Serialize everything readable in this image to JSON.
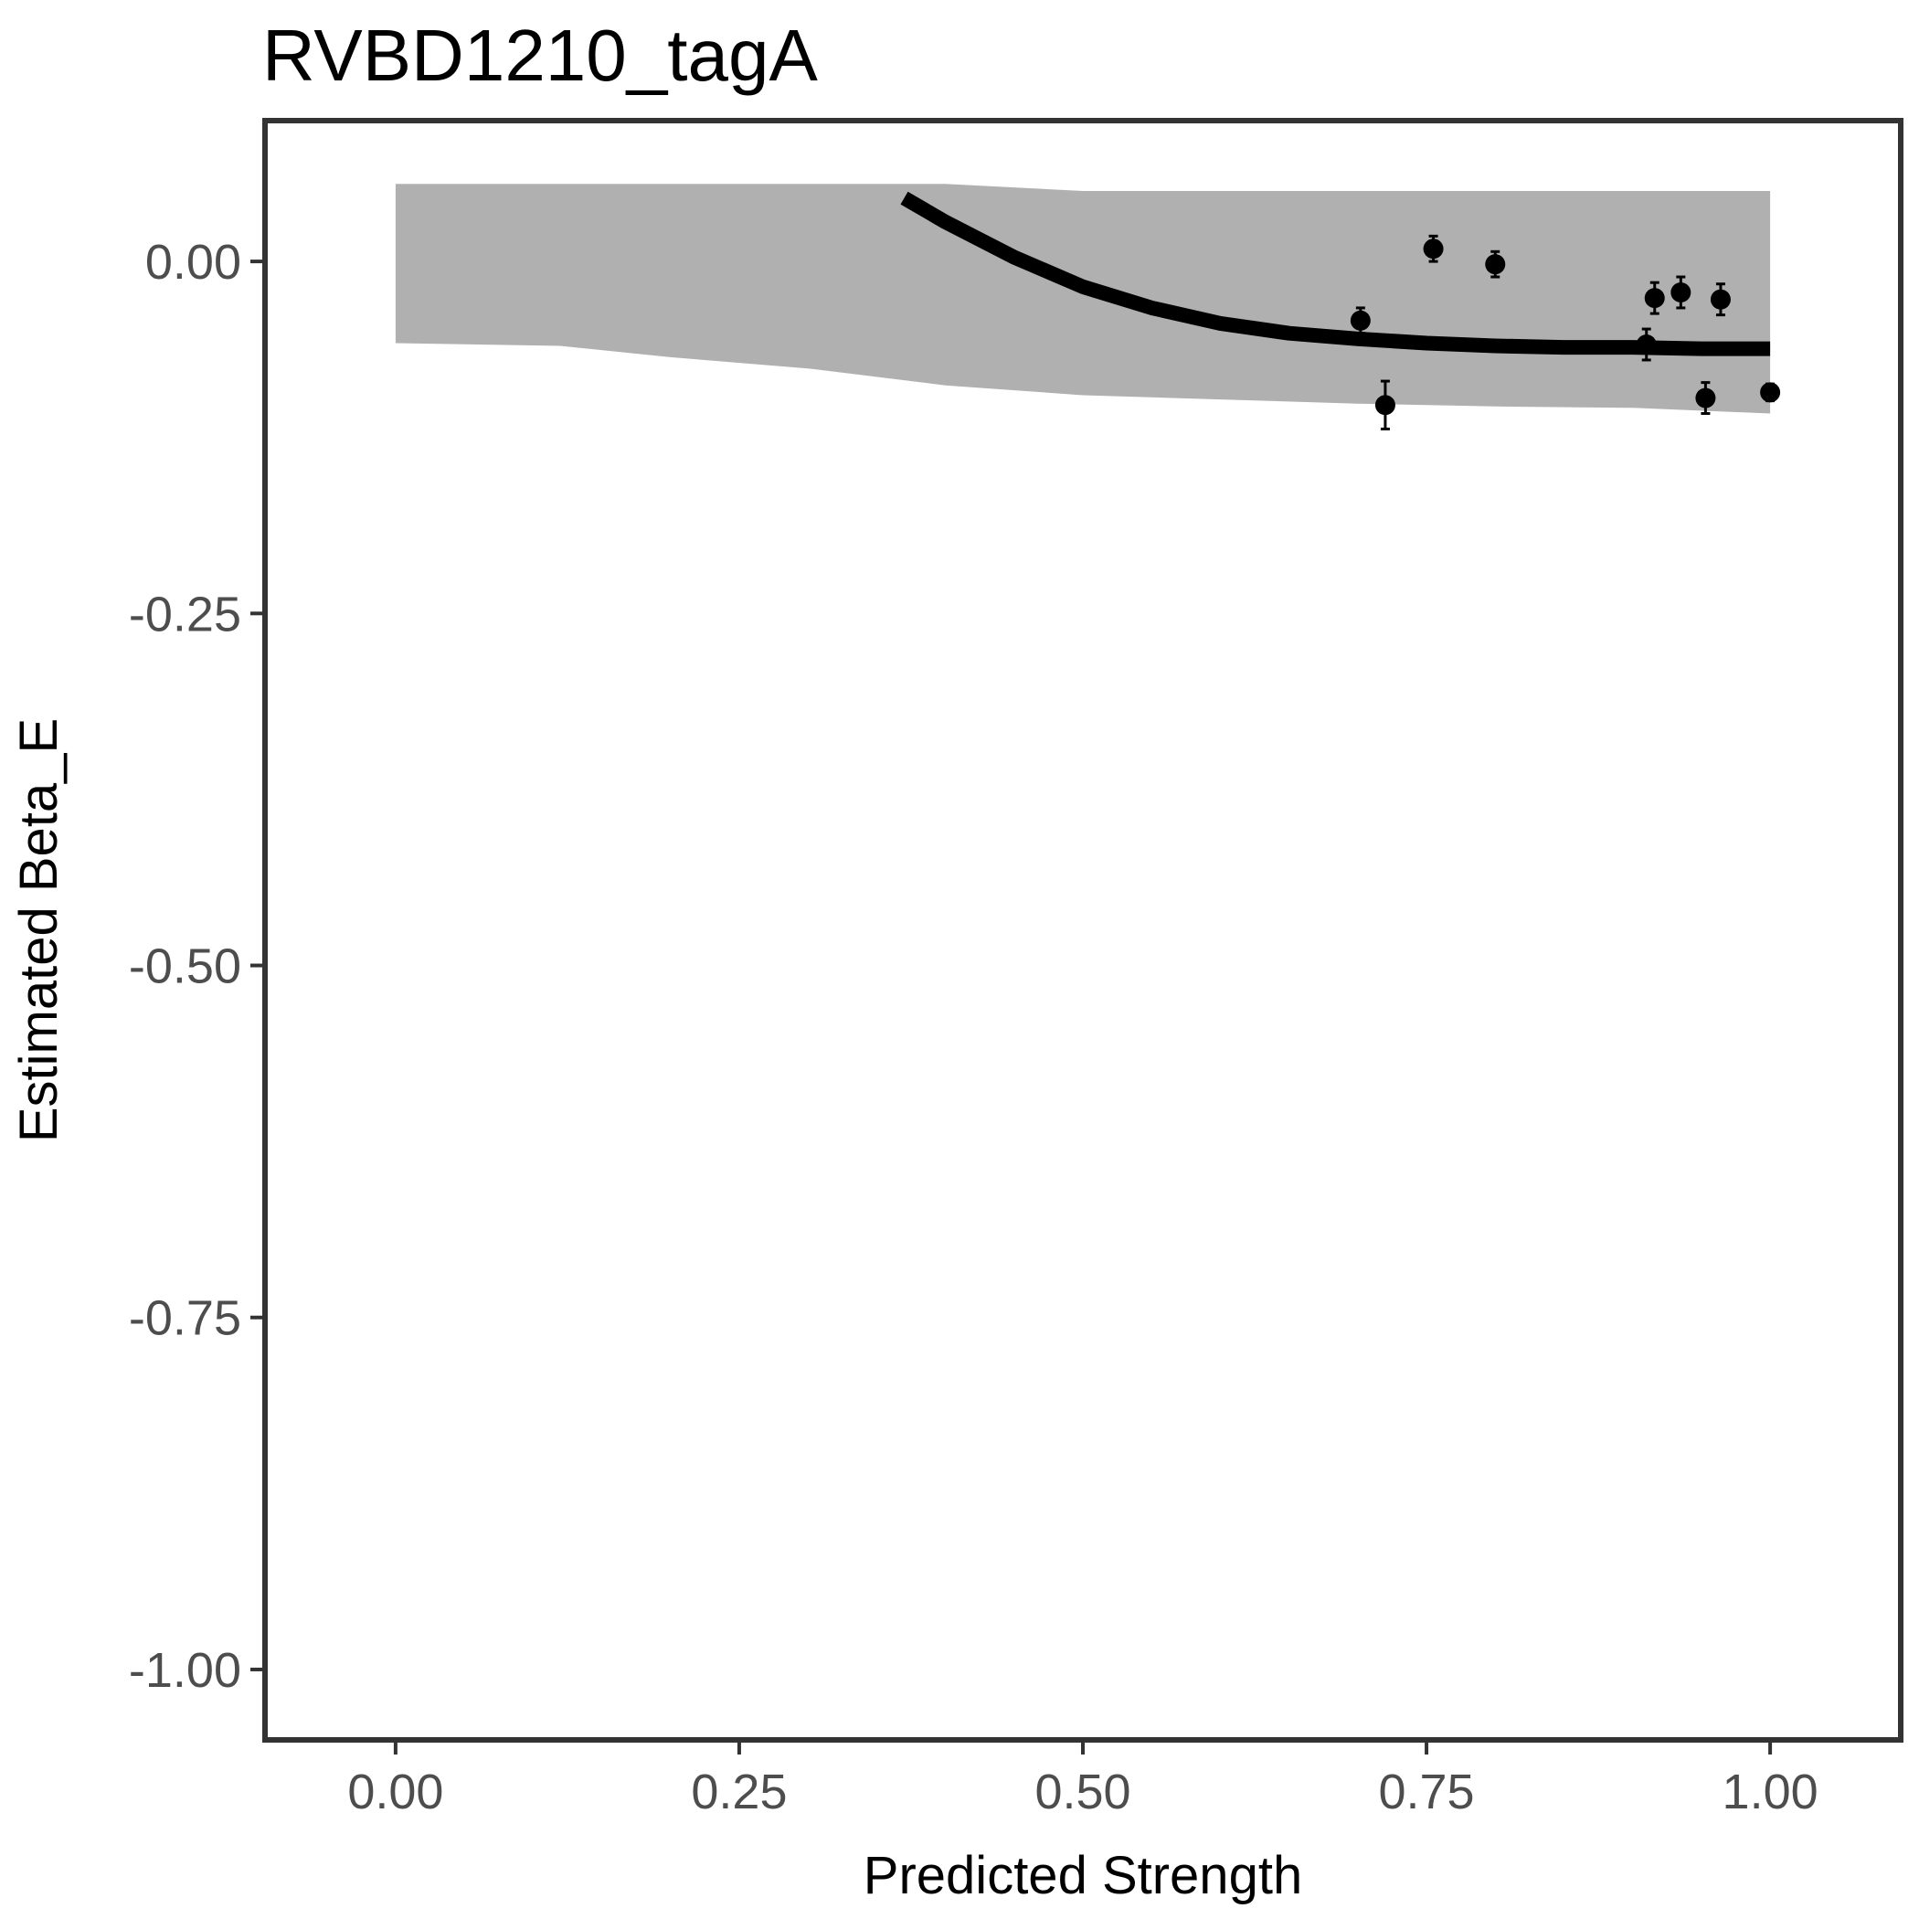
{
  "chart_data": {
    "type": "scatter",
    "title": "RVBD1210_tagA",
    "xlabel": "Predicted Strength",
    "ylabel": "Estimated Beta_E",
    "xlim": [
      -0.095,
      1.095
    ],
    "ylim": [
      -1.05,
      0.1
    ],
    "x_ticks": [
      0.0,
      0.25,
      0.5,
      0.75,
      1.0
    ],
    "x_tick_labels": [
      "0.00",
      "0.25",
      "0.50",
      "0.75",
      "1.00"
    ],
    "y_ticks": [
      0.0,
      -0.25,
      -0.5,
      -0.75,
      -1.0
    ],
    "y_tick_labels": [
      "0.00",
      "-0.25",
      "-0.50",
      "-0.75",
      "-1.00"
    ],
    "grid": false,
    "legend": "none",
    "colors": {
      "band": "#b0b0b0",
      "points": "#000000",
      "fit_line": "#000000",
      "panel_border": "#333333",
      "tick_labels": "#4d4d4d"
    },
    "band": {
      "x": [
        0.0,
        0.12,
        0.2,
        0.3,
        0.4,
        0.5,
        0.6,
        0.7,
        0.8,
        0.9,
        1.0
      ],
      "upper": [
        0.055,
        0.055,
        0.055,
        0.055,
        0.055,
        0.05,
        0.05,
        0.05,
        0.05,
        0.05,
        0.05
      ],
      "lower": [
        -0.058,
        -0.06,
        -0.068,
        -0.076,
        -0.088,
        -0.095,
        -0.098,
        -0.101,
        -0.103,
        -0.104,
        -0.108
      ]
    },
    "fit_line": {
      "x": [
        0.37,
        0.4,
        0.45,
        0.5,
        0.55,
        0.6,
        0.65,
        0.7,
        0.75,
        0.8,
        0.85,
        0.9,
        0.95,
        1.0
      ],
      "y": [
        0.045,
        0.028,
        0.003,
        -0.018,
        -0.033,
        -0.044,
        -0.051,
        -0.055,
        -0.058,
        -0.06,
        -0.061,
        -0.061,
        -0.062,
        -0.062
      ]
    },
    "points": [
      {
        "x": 0.702,
        "y": -0.042,
        "err": 0.009
      },
      {
        "x": 0.72,
        "y": -0.102,
        "err": 0.017
      },
      {
        "x": 0.755,
        "y": 0.009,
        "err": 0.009
      },
      {
        "x": 0.8,
        "y": -0.002,
        "err": 0.009
      },
      {
        "x": 0.91,
        "y": -0.059,
        "err": 0.011
      },
      {
        "x": 0.916,
        "y": -0.026,
        "err": 0.011
      },
      {
        "x": 0.935,
        "y": -0.022,
        "err": 0.011
      },
      {
        "x": 0.953,
        "y": -0.097,
        "err": 0.011
      },
      {
        "x": 0.964,
        "y": -0.027,
        "err": 0.011
      },
      {
        "x": 1.0,
        "y": -0.093,
        "err": 0.006
      }
    ]
  }
}
